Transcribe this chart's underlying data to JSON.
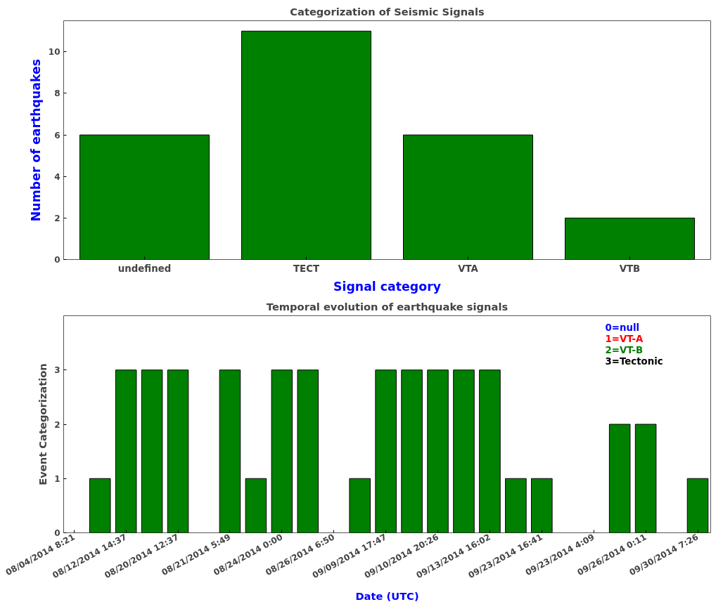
{
  "chart_data": [
    {
      "type": "bar",
      "title": "Categorization of Seismic Signals",
      "xlabel": "Signal category",
      "ylabel": "Number of earthquakes",
      "categories": [
        "undefined",
        "TECT",
        "VTA",
        "VTB"
      ],
      "values": [
        6,
        11,
        6,
        2
      ],
      "color": "#008000",
      "ylim": [
        0,
        11.5
      ],
      "yticks": [
        0,
        2,
        4,
        6,
        8,
        10
      ],
      "grid": false
    },
    {
      "type": "bar",
      "title": "Temporal evolution of earthquake signals",
      "xlabel": "Date (UTC)",
      "ylabel": "Event Categorization",
      "categories": [
        "08/04/2014 8:21",
        null,
        "08/12/2014 14:37",
        null,
        "08/20/2014 12:37",
        null,
        "08/21/2014 5:49",
        null,
        "08/24/2014 0:00",
        null,
        "08/26/2014 6:50",
        null,
        "09/09/2014 17:47",
        null,
        "09/10/2014 20:26",
        null,
        "09/13/2014 16:02",
        null,
        "09/23/2014 16:41",
        null,
        "09/23/2014 4:09",
        null,
        "09/26/2014 0:11",
        null,
        "09/30/2014 7:26"
      ],
      "values": [
        null,
        1,
        3,
        3,
        3,
        null,
        3,
        1,
        3,
        3,
        null,
        1,
        3,
        3,
        3,
        3,
        3,
        1,
        1,
        null,
        null,
        2,
        2,
        null,
        1
      ],
      "color": "#008000",
      "ylim": [
        0,
        4
      ],
      "yticks": [
        0,
        1,
        2,
        3
      ],
      "grid": false,
      "annotations": [
        "0=null",
        "1=VT-A",
        "2=VT-B",
        "3=Tectonic"
      ]
    }
  ]
}
